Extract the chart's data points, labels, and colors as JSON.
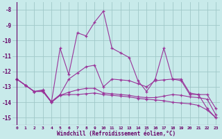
{
  "xlabel": "Windchill (Refroidissement éolien,°C)",
  "x": [
    0,
    1,
    2,
    3,
    4,
    5,
    6,
    7,
    8,
    9,
    10,
    11,
    12,
    13,
    14,
    15,
    16,
    17,
    18,
    19,
    20,
    21,
    22,
    23
  ],
  "line1": [
    -12.5,
    -12.9,
    -13.3,
    -13.2,
    -14.0,
    -10.5,
    -12.2,
    -9.5,
    -9.7,
    -8.8,
    -8.1,
    -10.5,
    -10.8,
    -11.1,
    -12.6,
    -13.3,
    -12.5,
    -10.5,
    -12.5,
    -12.6,
    -13.5,
    -13.5,
    -14.4,
    -15.0
  ],
  "line2": [
    -12.5,
    -12.9,
    -13.3,
    -13.25,
    -13.95,
    -13.5,
    -12.5,
    -12.1,
    -11.7,
    -11.6,
    -13.0,
    -12.5,
    -12.55,
    -12.6,
    -12.8,
    -13.0,
    -12.6,
    -12.55,
    -12.5,
    -12.5,
    -13.4,
    -13.5,
    -13.5,
    -14.4
  ],
  "line3": [
    -12.5,
    -12.9,
    -13.3,
    -13.3,
    -14.0,
    -13.55,
    -13.35,
    -13.2,
    -13.1,
    -13.1,
    -13.4,
    -13.45,
    -13.5,
    -13.55,
    -13.65,
    -13.7,
    -13.7,
    -13.6,
    -13.5,
    -13.55,
    -13.65,
    -13.7,
    -13.8,
    -14.8
  ],
  "line4": [
    -12.5,
    -12.9,
    -13.3,
    -13.3,
    -14.0,
    -13.55,
    -13.5,
    -13.5,
    -13.45,
    -13.4,
    -13.5,
    -13.55,
    -13.6,
    -13.65,
    -13.75,
    -13.8,
    -13.85,
    -13.9,
    -14.0,
    -14.05,
    -14.1,
    -14.2,
    -14.5,
    -15.0
  ],
  "line_color": "#993399",
  "bg_color": "#c8eaea",
  "grid_color": "#a0c8c8",
  "ylim": [
    -15.5,
    -7.5
  ],
  "xlim": [
    -0.5,
    23.5
  ],
  "yticks": [
    -15,
    -14,
    -13,
    -12,
    -11,
    -10,
    -9,
    -8
  ],
  "xticks": [
    0,
    1,
    2,
    3,
    4,
    5,
    6,
    7,
    8,
    9,
    10,
    11,
    12,
    13,
    14,
    15,
    16,
    17,
    18,
    19,
    20,
    21,
    22,
    23
  ]
}
